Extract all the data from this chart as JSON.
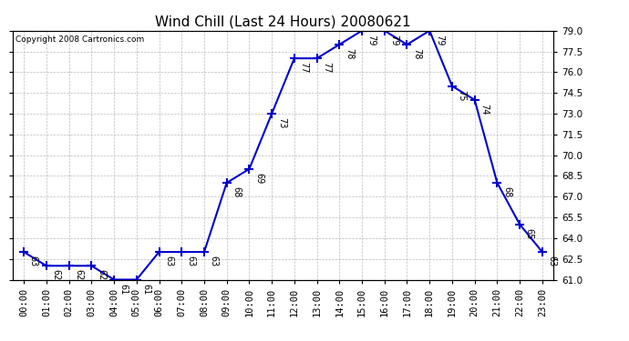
{
  "title": "Wind Chill (Last 24 Hours) 20080621",
  "copyright": "Copyright 2008 Cartronics.com",
  "hours": [
    "00:00",
    "01:00",
    "02:00",
    "03:00",
    "04:00",
    "05:00",
    "06:00",
    "07:00",
    "08:00",
    "09:00",
    "10:00",
    "11:00",
    "12:00",
    "13:00",
    "14:00",
    "15:00",
    "16:00",
    "17:00",
    "18:00",
    "19:00",
    "20:00",
    "21:00",
    "22:00",
    "23:00"
  ],
  "values": [
    63,
    62,
    62,
    62,
    61,
    61,
    63,
    63,
    63,
    68,
    69,
    73,
    77,
    77,
    78,
    79,
    79,
    78,
    79,
    75,
    74,
    68,
    65,
    63
  ],
  "ylim_min": 61.0,
  "ylim_max": 79.0,
  "yticks": [
    61.0,
    62.5,
    64.0,
    65.5,
    67.0,
    68.5,
    70.0,
    71.5,
    73.0,
    74.5,
    76.0,
    77.5,
    79.0
  ],
  "line_color": "#0000cc",
  "marker": "+",
  "bg_color": "#ffffff",
  "grid_color": "#bbbbbb",
  "label_color": "#000000",
  "title_fontsize": 11,
  "tick_fontsize": 7.5,
  "annotation_fontsize": 7,
  "copyright_fontsize": 6.5
}
